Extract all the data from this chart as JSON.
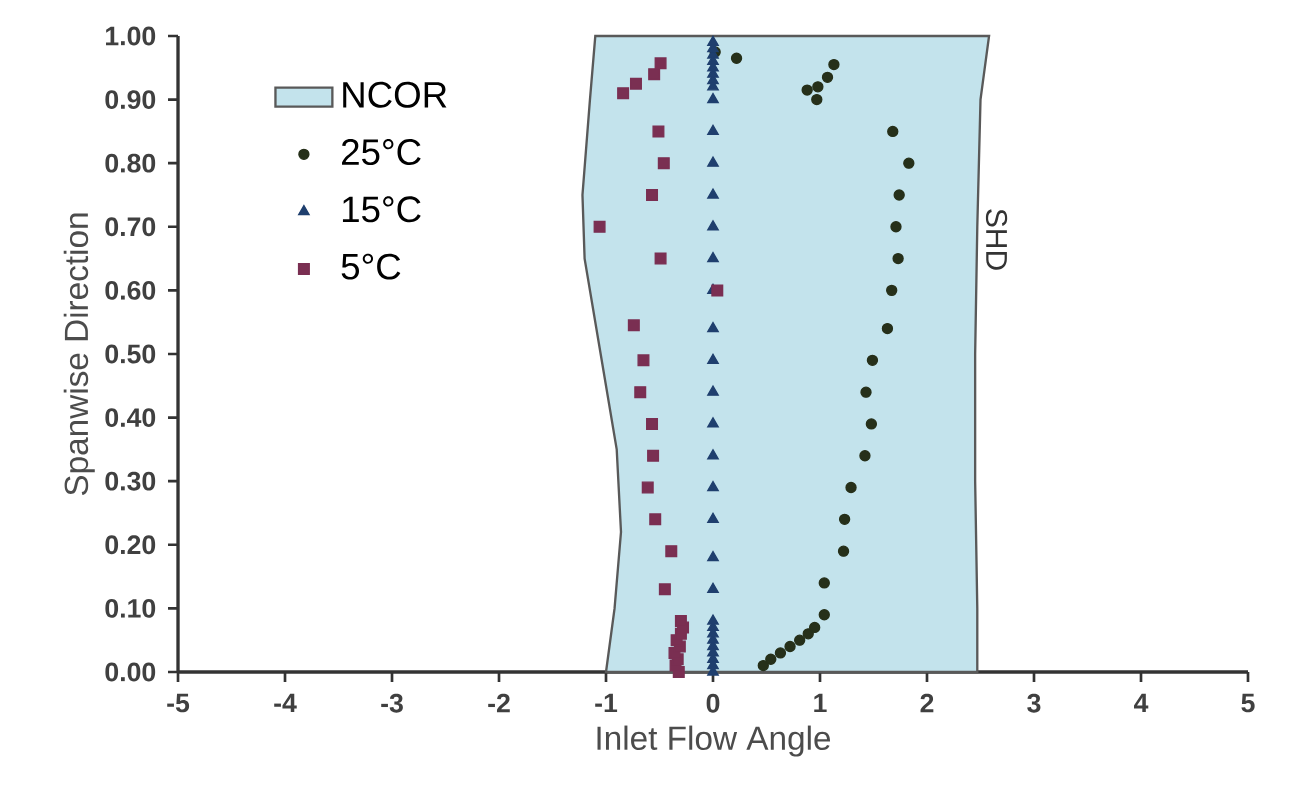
{
  "chart_data": {
    "type": "scatter",
    "xlabel": "Inlet Flow Angle",
    "ylabel": "Spanwise Direction",
    "xlim": [
      -5,
      5
    ],
    "ylim": [
      0,
      1
    ],
    "xticks": [
      -5,
      -4,
      -3,
      -2,
      -1,
      0,
      1,
      2,
      3,
      4,
      5
    ],
    "yticks": [
      {
        "value": 0,
        "label": "0.00"
      },
      {
        "value": 0.1,
        "label": "0.10"
      },
      {
        "value": 0.2,
        "label": "0.20"
      },
      {
        "value": 0.3,
        "label": "0.30"
      },
      {
        "value": 0.4,
        "label": "0.40"
      },
      {
        "value": 0.5,
        "label": "0.50"
      },
      {
        "value": 0.6,
        "label": "0.60"
      },
      {
        "value": 0.7,
        "label": "0.70"
      },
      {
        "value": 0.8,
        "label": "0.80"
      },
      {
        "value": 0.9,
        "label": "0.90"
      },
      {
        "value": 1,
        "label": "1.00"
      }
    ],
    "grid": false,
    "legend": "top left",
    "annotations": [
      "SHD"
    ],
    "series": [
      {
        "name": "NCOR",
        "type": "area",
        "color": "#c3e3ec",
        "x": [
          -1.0,
          -0.92,
          -0.86,
          -0.9,
          -1.05,
          -1.2,
          -1.22,
          -1.15,
          -1.1,
          2.58,
          2.5,
          2.47,
          2.45,
          2.45,
          2.47,
          2.47
        ],
        "values": [
          0,
          0.1,
          0.22,
          0.35,
          0.5,
          0.65,
          0.75,
          0.9,
          1.0,
          1.0,
          0.9,
          0.7,
          0.5,
          0.3,
          0.1,
          0
        ]
      },
      {
        "name": "25°C",
        "marker": "circle",
        "color": "#26301a",
        "x": [
          0.47,
          0.54,
          0.63,
          0.72,
          0.81,
          0.89,
          0.95,
          1.04,
          1.04,
          1.22,
          1.23,
          1.29,
          1.42,
          1.48,
          1.43,
          1.49,
          1.63,
          1.67,
          1.73,
          1.71,
          1.74,
          1.83,
          1.68,
          0.97,
          0.88,
          0.98,
          1.07,
          1.13,
          0.22,
          0.02
        ],
        "values": [
          0.01,
          0.02,
          0.03,
          0.04,
          0.05,
          0.06,
          0.07,
          0.09,
          0.14,
          0.19,
          0.24,
          0.29,
          0.34,
          0.39,
          0.44,
          0.49,
          0.54,
          0.6,
          0.65,
          0.7,
          0.75,
          0.8,
          0.85,
          0.9,
          0.915,
          0.92,
          0.935,
          0.955,
          0.965,
          0.975
        ]
      },
      {
        "name": "15°C",
        "marker": "triangle",
        "color": "#1f3f6e",
        "x": [
          0,
          0,
          0,
          0,
          0,
          0,
          0,
          0,
          0,
          0,
          0,
          0,
          0,
          0,
          0,
          0,
          0,
          0,
          0,
          0,
          0,
          0,
          0,
          0,
          0,
          0,
          0,
          0,
          0,
          0,
          0,
          0,
          0
        ],
        "values": [
          0.0,
          0.01,
          0.02,
          0.03,
          0.04,
          0.05,
          0.06,
          0.07,
          0.08,
          0.13,
          0.18,
          0.24,
          0.29,
          0.34,
          0.39,
          0.44,
          0.49,
          0.54,
          0.6,
          0.65,
          0.7,
          0.75,
          0.8,
          0.85,
          0.9,
          0.92,
          0.93,
          0.94,
          0.95,
          0.96,
          0.97,
          0.98,
          0.99
        ]
      },
      {
        "name": "5°C",
        "marker": "square",
        "color": "#7a2f52",
        "x": [
          -0.32,
          -0.35,
          -0.33,
          -0.36,
          -0.31,
          -0.34,
          -0.3,
          -0.28,
          -0.3,
          -0.45,
          -0.39,
          -0.54,
          -0.61,
          -0.56,
          -0.57,
          -0.68,
          -0.65,
          -0.74,
          0.04,
          -0.49,
          -1.06,
          -0.57,
          -0.46,
          -0.51,
          -0.84,
          -0.72,
          -0.55,
          -0.49
        ],
        "values": [
          0.0,
          0.01,
          0.02,
          0.03,
          0.04,
          0.05,
          0.06,
          0.07,
          0.08,
          0.13,
          0.19,
          0.24,
          0.29,
          0.34,
          0.39,
          0.44,
          0.49,
          0.545,
          0.6,
          0.65,
          0.7,
          0.75,
          0.8,
          0.85,
          0.91,
          0.925,
          0.94,
          0.957
        ]
      }
    ]
  }
}
